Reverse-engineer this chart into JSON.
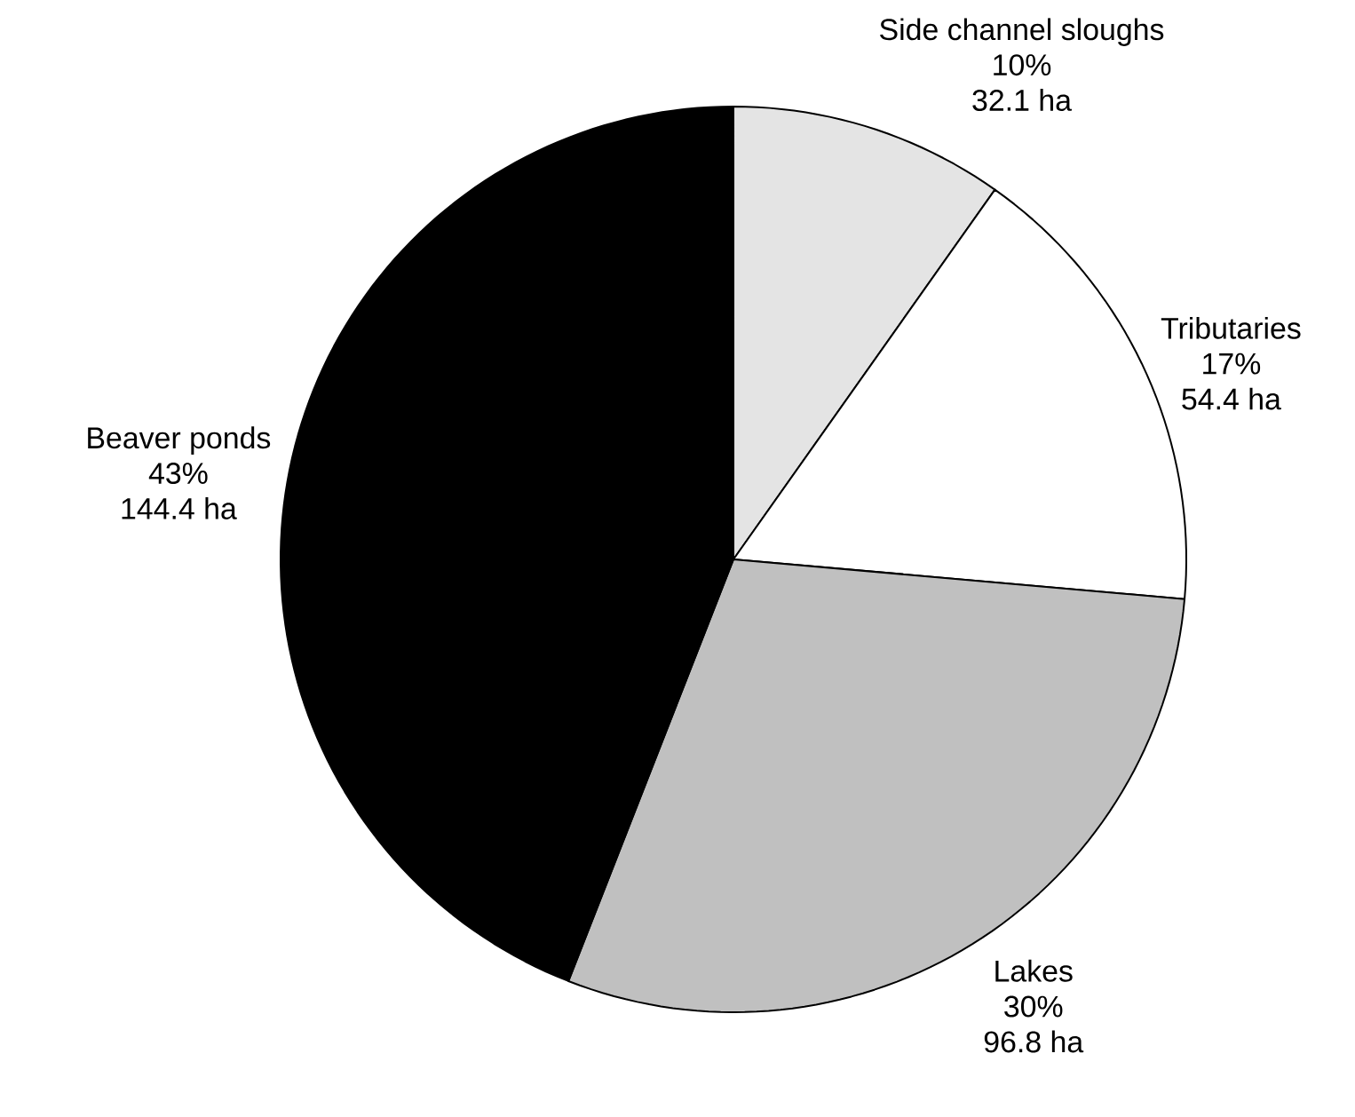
{
  "chart_data": {
    "type": "pie",
    "categories": [
      "Side channel sloughs",
      "Tributaries",
      "Lakes",
      "Beaver ponds"
    ],
    "values": [
      32.1,
      54.4,
      96.8,
      144.4
    ],
    "value_labels": [
      "32.1 ha",
      "54.4 ha",
      "96.8 ha",
      "144.4 ha"
    ],
    "annotations": [
      "10%",
      "17%",
      "30%",
      "43%"
    ],
    "colors": [
      "#e4e4e4",
      "#ffffff",
      "#c0c0c0",
      "#000000"
    ]
  }
}
